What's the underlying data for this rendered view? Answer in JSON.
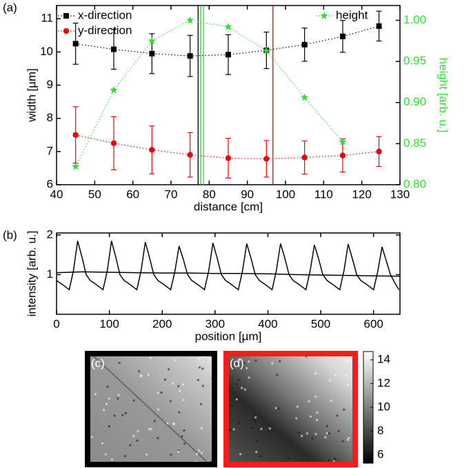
{
  "chart_data": [
    {
      "type": "scatter",
      "panel_label": "(a)",
      "xlabel": "distance [cm]",
      "ylabel": "width [µm]",
      "y2label": "height [arb. u.]",
      "xlim": [
        40,
        130
      ],
      "xticks": [
        40,
        50,
        60,
        70,
        80,
        90,
        100,
        110,
        120,
        130
      ],
      "ylim": [
        6,
        11.4
      ],
      "yticks": [
        6,
        7,
        8,
        9,
        10,
        11
      ],
      "y2lim": [
        0.8,
        1.018
      ],
      "y2ticks": [
        {
          "value": 0.8,
          "label": "0.80"
        },
        {
          "value": 0.85,
          "label": "0.85"
        },
        {
          "value": 0.9,
          "label": "0.90"
        },
        {
          "value": 0.95,
          "label": "0.95"
        },
        {
          "value": 1.0,
          "label": "1.00"
        }
      ],
      "series": [
        {
          "name": "x-direction",
          "color": "#000000",
          "marker": "square",
          "linestyle": "dotted",
          "x": [
            45,
            55,
            65,
            75,
            85,
            95,
            105,
            115,
            124.5
          ],
          "values": [
            10.25,
            10.08,
            9.95,
            9.88,
            9.92,
            10.05,
            10.22,
            10.47,
            10.78
          ],
          "errors": [
            0.62,
            0.6,
            0.6,
            0.62,
            0.6,
            0.55,
            0.5,
            0.48,
            0.45
          ]
        },
        {
          "name": "y-direction",
          "color": "#e8000b",
          "marker": "circle",
          "linestyle": "dotted",
          "x": [
            45,
            55,
            65,
            75,
            85,
            95,
            105,
            115,
            124.5
          ],
          "values": [
            7.5,
            7.25,
            7.05,
            6.9,
            6.8,
            6.78,
            6.82,
            6.88,
            7.0
          ],
          "errors": [
            0.85,
            0.8,
            0.72,
            0.67,
            0.6,
            0.55,
            0.5,
            0.5,
            0.45
          ]
        },
        {
          "name": "height",
          "color": "#33dd33",
          "marker": "star",
          "linestyle": "dotted",
          "axis": "y2",
          "x": [
            45,
            55,
            65,
            75,
            85,
            95,
            105,
            115
          ],
          "values": [
            0.822,
            0.915,
            0.975,
            1.0,
            0.992,
            0.963,
            0.906,
            0.852
          ]
        }
      ],
      "vlines": [
        {
          "x": 77.1,
          "color": "#000000"
        },
        {
          "x": 77.8,
          "color": "#33cc33"
        },
        {
          "x": 78.5,
          "color": "#33cc33"
        },
        {
          "x": 96.7,
          "color": "#e8000b"
        }
      ]
    },
    {
      "type": "line",
      "panel_label": "(b)",
      "xlabel": "position [µm]",
      "ylabel": "intensity [arb. u.]",
      "xlim": [
        0,
        650
      ],
      "xticks": [
        0,
        100,
        200,
        300,
        400,
        500,
        600
      ],
      "ylim": [
        0,
        2.05
      ],
      "yticks": [
        1,
        2
      ],
      "series": [
        {
          "color": "#000000",
          "x": [
            0,
            8,
            16,
            24,
            32,
            40,
            48,
            56,
            64,
            72,
            80,
            88,
            96,
            104,
            112,
            120,
            128,
            136,
            144,
            152,
            160,
            168,
            176,
            184,
            192,
            200,
            208,
            216,
            224,
            232,
            240,
            248,
            256,
            264,
            272,
            280,
            288,
            296,
            304,
            312,
            320,
            328,
            336,
            344,
            352,
            360,
            368,
            376,
            384,
            392,
            400,
            408,
            416,
            424,
            432,
            440,
            448,
            456,
            464,
            472,
            480,
            488,
            496,
            504,
            512,
            520,
            528,
            536,
            544,
            552,
            560,
            568,
            576,
            584,
            592,
            600,
            608,
            616,
            624,
            632,
            640,
            648
          ],
          "values": [
            0.85,
            0.78,
            0.7,
            0.62,
            1.1,
            1.85,
            1.45,
            1.0,
            0.85,
            0.78,
            0.7,
            0.62,
            1.1,
            1.85,
            1.45,
            1.0,
            0.85,
            0.78,
            0.7,
            0.62,
            1.1,
            1.82,
            1.43,
            1.0,
            0.85,
            0.78,
            0.7,
            0.62,
            1.08,
            1.72,
            1.38,
            1.0,
            0.85,
            0.78,
            0.7,
            0.62,
            1.1,
            1.8,
            1.42,
            1.0,
            0.85,
            0.78,
            0.7,
            0.62,
            1.1,
            1.78,
            1.42,
            1.0,
            0.85,
            0.78,
            0.7,
            0.62,
            1.1,
            1.78,
            1.42,
            1.0,
            0.85,
            0.78,
            0.7,
            0.62,
            1.1,
            1.75,
            1.4,
            1.0,
            0.85,
            0.78,
            0.7,
            0.62,
            1.1,
            1.77,
            1.4,
            1.0,
            0.85,
            0.78,
            0.7,
            0.62,
            1.08,
            1.7,
            1.35,
            1.0,
            0.8,
            0.62
          ]
        },
        {
          "color": "#000000",
          "x": [
            0,
            50,
            100,
            150,
            200,
            250,
            300,
            350,
            400,
            450,
            500,
            550,
            600,
            650
          ],
          "values": [
            1.05,
            1.07,
            1.06,
            1.05,
            1.04,
            1.04,
            1.03,
            1.03,
            1.02,
            1.0,
            0.99,
            0.98,
            0.97,
            0.96
          ]
        }
      ]
    },
    {
      "type": "image",
      "panel_labels": [
        "(c)",
        "(d)"
      ],
      "border_colors": [
        "#000000",
        "#ff1a1a"
      ],
      "clim": [
        5.3,
        14.7
      ],
      "cticks": [
        6,
        8,
        10,
        12,
        14
      ]
    }
  ]
}
